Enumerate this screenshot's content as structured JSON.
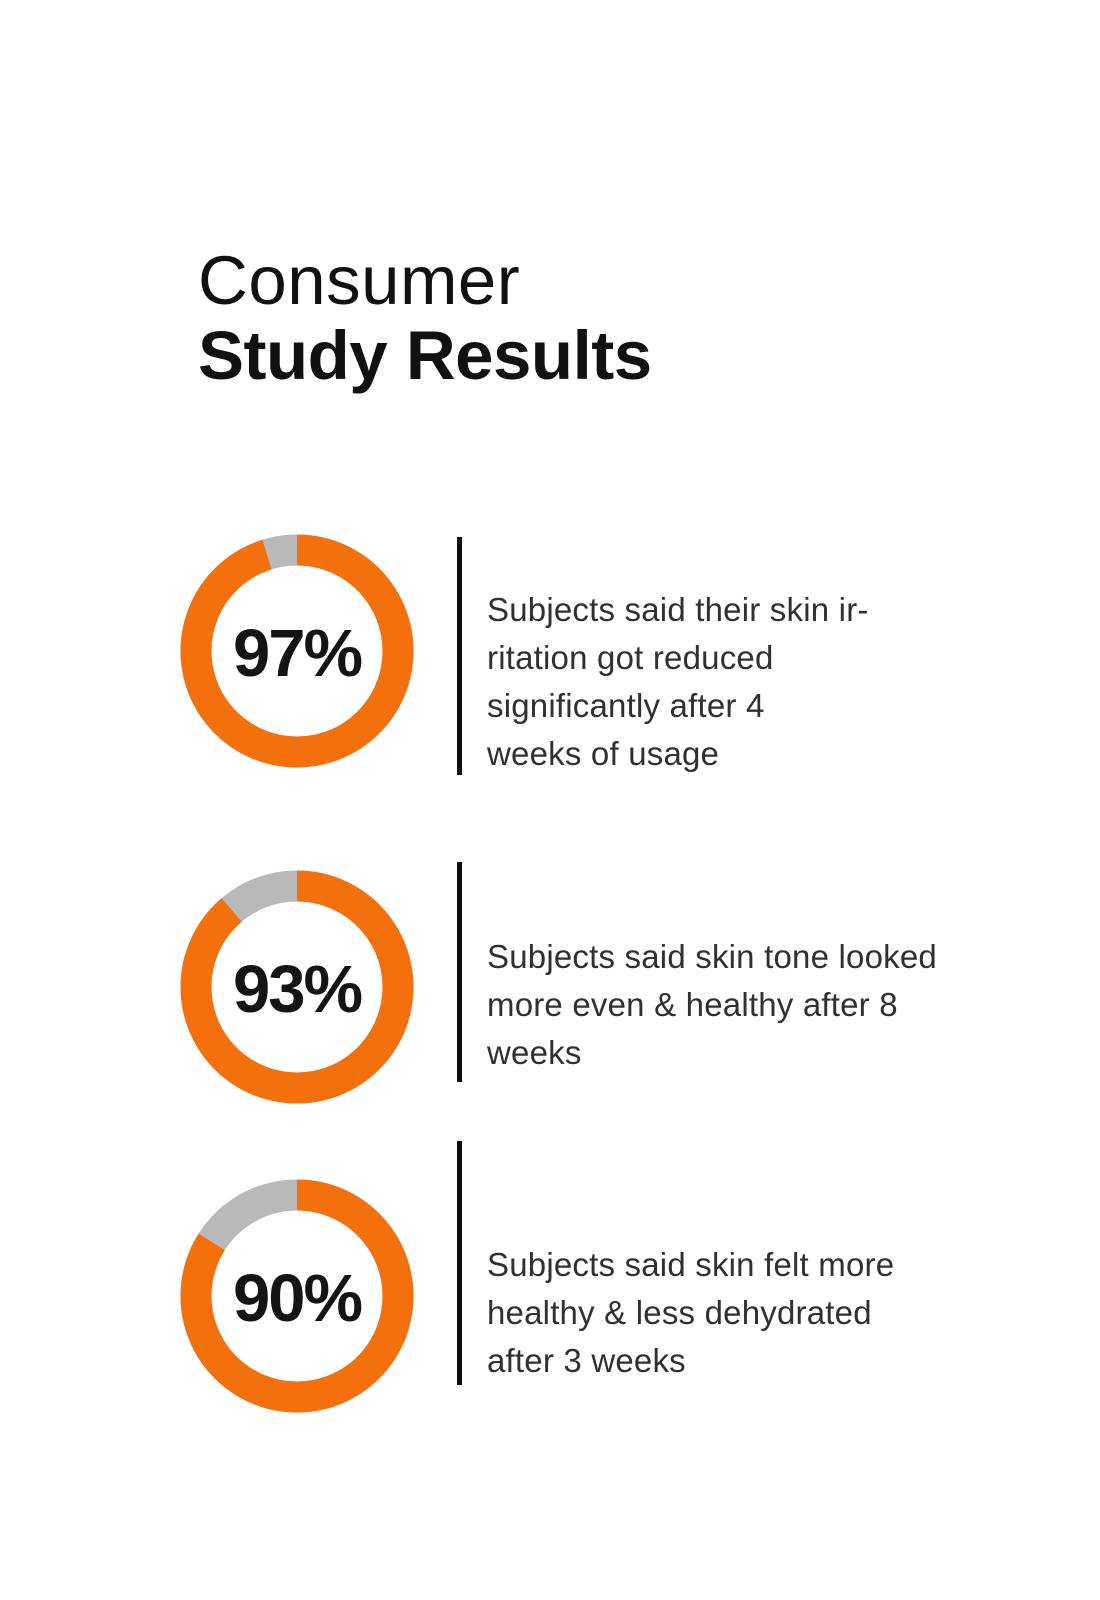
{
  "header": {
    "title_line1": "Consumer",
    "title_line2": "Study Results"
  },
  "colors": {
    "ring_orange": "#F3700D",
    "track_gray": "#B9B9B9",
    "divider_black": "#0d0d0d",
    "text_dark": "#303030",
    "title_black": "#111111"
  },
  "chart_data": {
    "type": "donut",
    "title": "Consumer Study Results",
    "range": [
      0,
      100
    ],
    "ring_color": "#F3700D",
    "track_color": "#B9B9B9",
    "charts": [
      {
        "value": 97,
        "label": "97%",
        "caption": "Subjects said their skin irritation got reduced significantly after 4 weeks of usage"
      },
      {
        "value": 93,
        "label": "93%",
        "caption": "Subjects said skin tone looked more even & healthy after 8 weeks"
      },
      {
        "value": 90,
        "label": "90%",
        "caption": "Subjects said skin felt more healthy & less dehydrated after 3 weeks"
      }
    ]
  },
  "results": [
    {
      "percent_label": "97%",
      "lines": [
        "Subjects said their skin ir-",
        "ritation got reduced",
        "significantly after 4",
        "weeks of usage"
      ]
    },
    {
      "percent_label": "93%",
      "lines": [
        "Subjects said skin tone looked",
        "more even & healthy after 8",
        "weeks"
      ]
    },
    {
      "percent_label": "90%",
      "lines": [
        "Subjects said skin felt more",
        "healthy & less dehydrated",
        "after 3 weeks"
      ]
    }
  ]
}
